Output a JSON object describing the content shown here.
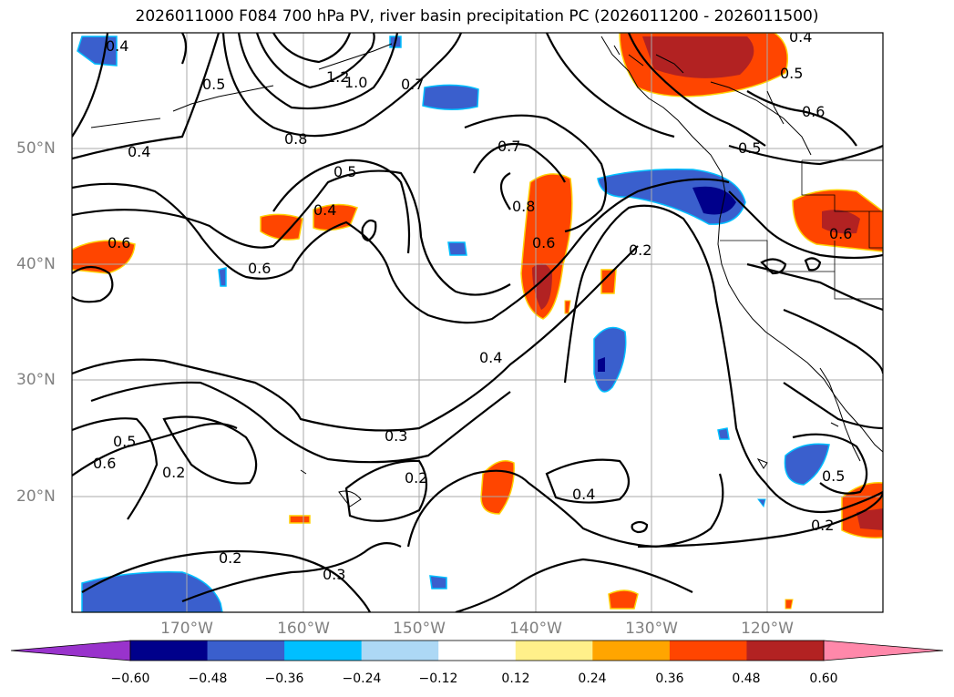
{
  "title": "2026011000 F084 700 hPa PV, river basin precipitation PC (2026011200 - 2026011500)",
  "map": {
    "lon_labels": [
      "170°W",
      "160°W",
      "150°W",
      "140°W",
      "130°W",
      "120°W"
    ],
    "lat_labels": [
      "50°N",
      "40°N",
      "30°N",
      "20°N"
    ],
    "gridlines": true,
    "contour_labels": [
      "0.4",
      "0.5",
      "1.2",
      "1.0",
      "0.7",
      "0.8",
      "0.4",
      "0.5",
      "0.4",
      "0.6",
      "0.7",
      "0.8",
      "0.6",
      "0.2",
      "0.5",
      "0.6",
      "0.6",
      "0.4",
      "0.3",
      "0.2",
      "0.5",
      "0.6",
      "0.2",
      "0.2",
      "0.3",
      "0.4",
      "0.2",
      "0.5",
      "0.6",
      "0.4",
      "0.5"
    ]
  },
  "colorbar": {
    "ticks": [
      "−0.60",
      "−0.48",
      "−0.36",
      "−0.24",
      "−0.12",
      "0.12",
      "0.24",
      "0.36",
      "0.48",
      "0.60"
    ],
    "colors": [
      "#9933cc",
      "#00008b",
      "#3a5fcd",
      "#00bfff",
      "#add8f5",
      "#ffffff",
      "#fff08a",
      "#ffa500",
      "#ff4500",
      "#b22222",
      "#ff88aa"
    ]
  }
}
